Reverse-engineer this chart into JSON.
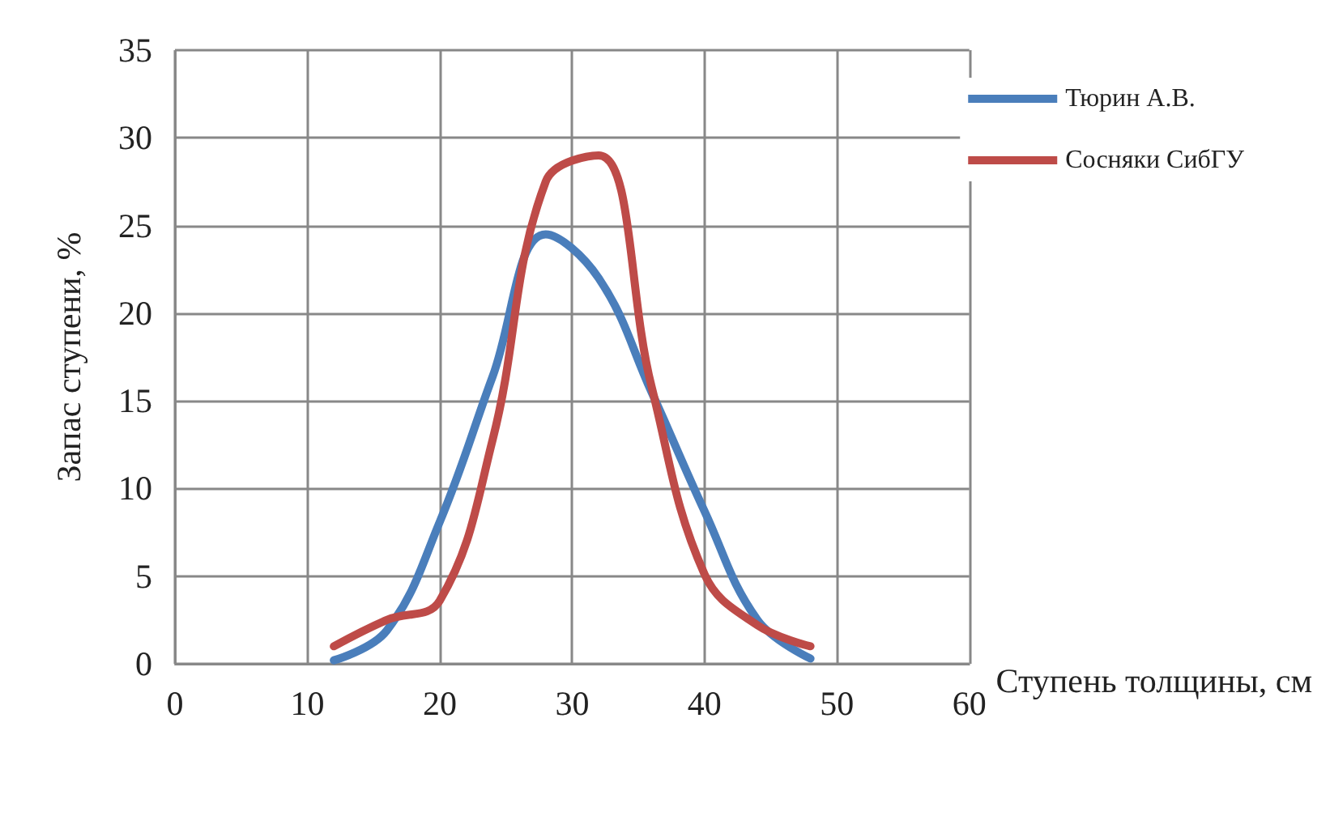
{
  "chart_data": {
    "type": "line",
    "xlabel": "Ступень толщины, см",
    "ylabel": "Запас ступени, %",
    "x": [
      12,
      16,
      20,
      24,
      28,
      32,
      36,
      40,
      44,
      48
    ],
    "series": [
      {
        "name": "Тюрин А.В.",
        "color": "#4a7ebb",
        "values": [
          0.2,
          1.9,
          8.1,
          16.4,
          24.5,
          22,
          15.5,
          8.7,
          2.5,
          0.3
        ]
      },
      {
        "name": "Сосняки СибГУ",
        "color": "#be4b48",
        "values": [
          1,
          2.5,
          3.6,
          12.8,
          27.5,
          29,
          15.8,
          5.1,
          2.2,
          1
        ]
      }
    ],
    "xlim": [
      0,
      60
    ],
    "xticks": [
      0,
      10,
      20,
      30,
      40,
      50,
      60
    ],
    "ylim": [
      0,
      35
    ],
    "yticks": [
      0,
      5,
      10,
      15,
      20,
      25,
      30,
      35
    ],
    "grid": true,
    "legend": "top right",
    "marker": "none",
    "line_style": "solid"
  }
}
